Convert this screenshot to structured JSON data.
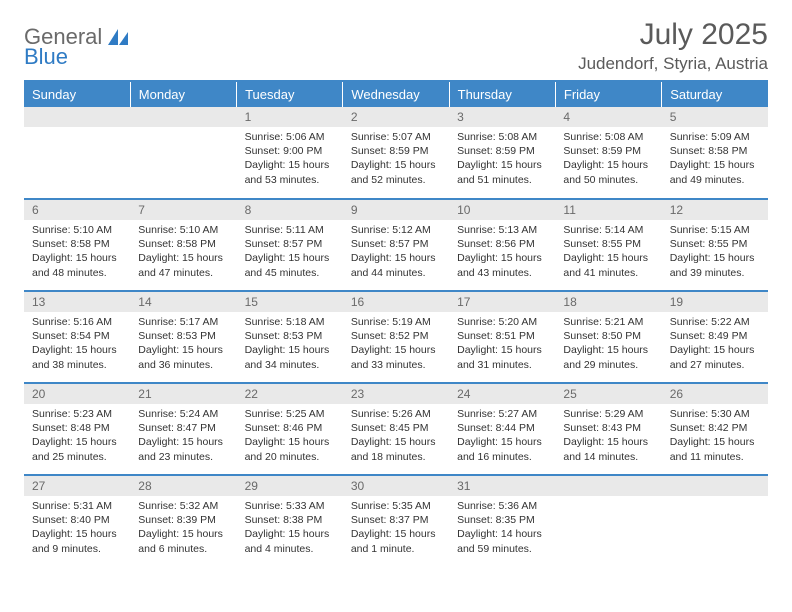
{
  "colors": {
    "brand_blue": "#3f87c7",
    "brand_gray": "#6a6a6a",
    "header_bg": "#3f87c7",
    "header_text": "#ffffff",
    "daynum_bg": "#e9e9e9",
    "daynum_text": "#6a6a6a",
    "body_text": "#333333",
    "page_bg": "#ffffff"
  },
  "logo": {
    "part1": "General",
    "part2": "Blue"
  },
  "title": "July 2025",
  "location": "Judendorf, Styria, Austria",
  "day_headers": [
    "Sunday",
    "Monday",
    "Tuesday",
    "Wednesday",
    "Thursday",
    "Friday",
    "Saturday"
  ],
  "weeks": [
    [
      null,
      null,
      {
        "num": "1",
        "sunrise": "5:06 AM",
        "sunset": "9:00 PM",
        "daylight": "15 hours and 53 minutes."
      },
      {
        "num": "2",
        "sunrise": "5:07 AM",
        "sunset": "8:59 PM",
        "daylight": "15 hours and 52 minutes."
      },
      {
        "num": "3",
        "sunrise": "5:08 AM",
        "sunset": "8:59 PM",
        "daylight": "15 hours and 51 minutes."
      },
      {
        "num": "4",
        "sunrise": "5:08 AM",
        "sunset": "8:59 PM",
        "daylight": "15 hours and 50 minutes."
      },
      {
        "num": "5",
        "sunrise": "5:09 AM",
        "sunset": "8:58 PM",
        "daylight": "15 hours and 49 minutes."
      }
    ],
    [
      {
        "num": "6",
        "sunrise": "5:10 AM",
        "sunset": "8:58 PM",
        "daylight": "15 hours and 48 minutes."
      },
      {
        "num": "7",
        "sunrise": "5:10 AM",
        "sunset": "8:58 PM",
        "daylight": "15 hours and 47 minutes."
      },
      {
        "num": "8",
        "sunrise": "5:11 AM",
        "sunset": "8:57 PM",
        "daylight": "15 hours and 45 minutes."
      },
      {
        "num": "9",
        "sunrise": "5:12 AM",
        "sunset": "8:57 PM",
        "daylight": "15 hours and 44 minutes."
      },
      {
        "num": "10",
        "sunrise": "5:13 AM",
        "sunset": "8:56 PM",
        "daylight": "15 hours and 43 minutes."
      },
      {
        "num": "11",
        "sunrise": "5:14 AM",
        "sunset": "8:55 PM",
        "daylight": "15 hours and 41 minutes."
      },
      {
        "num": "12",
        "sunrise": "5:15 AM",
        "sunset": "8:55 PM",
        "daylight": "15 hours and 39 minutes."
      }
    ],
    [
      {
        "num": "13",
        "sunrise": "5:16 AM",
        "sunset": "8:54 PM",
        "daylight": "15 hours and 38 minutes."
      },
      {
        "num": "14",
        "sunrise": "5:17 AM",
        "sunset": "8:53 PM",
        "daylight": "15 hours and 36 minutes."
      },
      {
        "num": "15",
        "sunrise": "5:18 AM",
        "sunset": "8:53 PM",
        "daylight": "15 hours and 34 minutes."
      },
      {
        "num": "16",
        "sunrise": "5:19 AM",
        "sunset": "8:52 PM",
        "daylight": "15 hours and 33 minutes."
      },
      {
        "num": "17",
        "sunrise": "5:20 AM",
        "sunset": "8:51 PM",
        "daylight": "15 hours and 31 minutes."
      },
      {
        "num": "18",
        "sunrise": "5:21 AM",
        "sunset": "8:50 PM",
        "daylight": "15 hours and 29 minutes."
      },
      {
        "num": "19",
        "sunrise": "5:22 AM",
        "sunset": "8:49 PM",
        "daylight": "15 hours and 27 minutes."
      }
    ],
    [
      {
        "num": "20",
        "sunrise": "5:23 AM",
        "sunset": "8:48 PM",
        "daylight": "15 hours and 25 minutes."
      },
      {
        "num": "21",
        "sunrise": "5:24 AM",
        "sunset": "8:47 PM",
        "daylight": "15 hours and 23 minutes."
      },
      {
        "num": "22",
        "sunrise": "5:25 AM",
        "sunset": "8:46 PM",
        "daylight": "15 hours and 20 minutes."
      },
      {
        "num": "23",
        "sunrise": "5:26 AM",
        "sunset": "8:45 PM",
        "daylight": "15 hours and 18 minutes."
      },
      {
        "num": "24",
        "sunrise": "5:27 AM",
        "sunset": "8:44 PM",
        "daylight": "15 hours and 16 minutes."
      },
      {
        "num": "25",
        "sunrise": "5:29 AM",
        "sunset": "8:43 PM",
        "daylight": "15 hours and 14 minutes."
      },
      {
        "num": "26",
        "sunrise": "5:30 AM",
        "sunset": "8:42 PM",
        "daylight": "15 hours and 11 minutes."
      }
    ],
    [
      {
        "num": "27",
        "sunrise": "5:31 AM",
        "sunset": "8:40 PM",
        "daylight": "15 hours and 9 minutes."
      },
      {
        "num": "28",
        "sunrise": "5:32 AM",
        "sunset": "8:39 PM",
        "daylight": "15 hours and 6 minutes."
      },
      {
        "num": "29",
        "sunrise": "5:33 AM",
        "sunset": "8:38 PM",
        "daylight": "15 hours and 4 minutes."
      },
      {
        "num": "30",
        "sunrise": "5:35 AM",
        "sunset": "8:37 PM",
        "daylight": "15 hours and 1 minute."
      },
      {
        "num": "31",
        "sunrise": "5:36 AM",
        "sunset": "8:35 PM",
        "daylight": "14 hours and 59 minutes."
      },
      null,
      null
    ]
  ],
  "labels": {
    "sunrise": "Sunrise:",
    "sunset": "Sunset:",
    "daylight": "Daylight:"
  }
}
